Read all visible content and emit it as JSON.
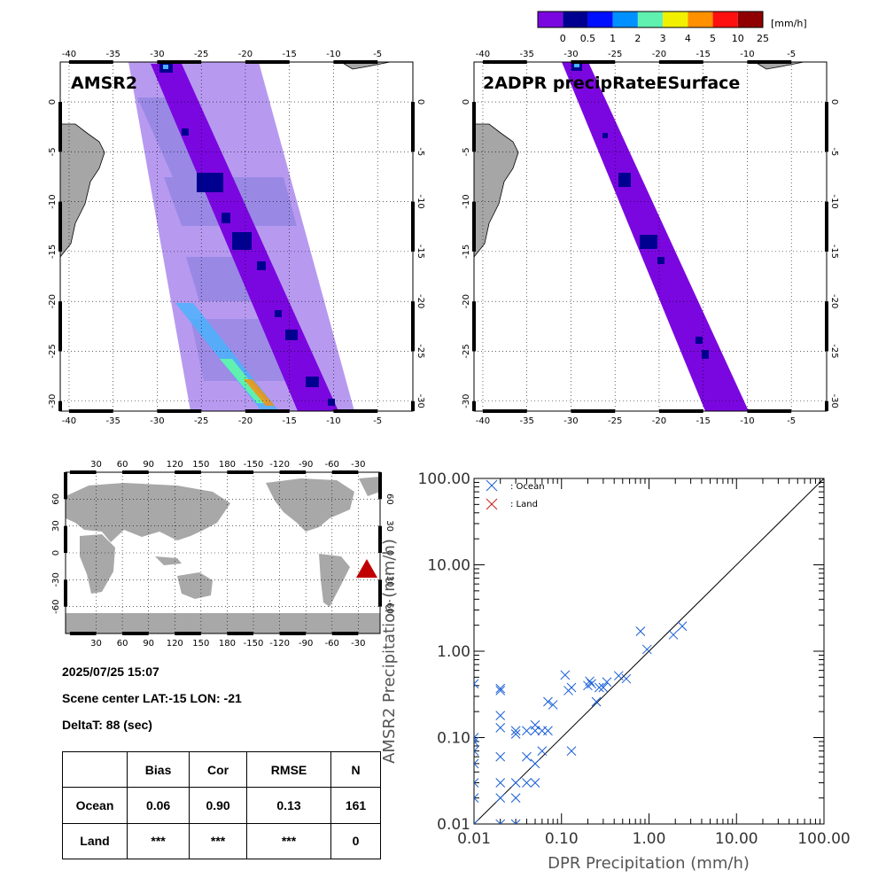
{
  "colorbar": {
    "unit": "[mm/h]",
    "labels": [
      "0",
      "0.5",
      "1",
      "2",
      "3",
      "4",
      "5",
      "10",
      "25"
    ],
    "colors": [
      "#7b07e0",
      "#000090",
      "#0010ff",
      "#0090ff",
      "#60f0b0",
      "#f0f000",
      "#ff9000",
      "#ff1010",
      "#900000"
    ]
  },
  "maps": {
    "lon_ticks": [
      "-40",
      "-35",
      "-30",
      "-25",
      "-20",
      "-15",
      "-10",
      "-5"
    ],
    "lat_ticks": [
      "0",
      "-5",
      "-10",
      "-15",
      "-20",
      "-25",
      "-30"
    ],
    "amsr2": {
      "title": "AMSR2"
    },
    "dpr": {
      "title": "2ADPR precipRateESurface"
    }
  },
  "globe": {
    "lon_ticks": [
      "30",
      "60",
      "90",
      "120",
      "150",
      "180",
      "-150",
      "-120",
      "-90",
      "-60",
      "-30"
    ],
    "lat_ticks": [
      "60",
      "30",
      "0",
      "-30",
      "-60"
    ],
    "marker_color": "#c00000"
  },
  "info": {
    "datetime": "2025/07/25 15:07",
    "scene_center": "Scene center LAT:-15   LON: -21",
    "delta_t": "DeltaT:   88 (sec)"
  },
  "stats": {
    "headers": [
      "",
      "Bias",
      "Cor",
      "RMSE",
      "N"
    ],
    "rows": [
      [
        "Ocean",
        "0.06",
        "0.90",
        "0.13",
        "161"
      ],
      [
        "Land",
        "***",
        "***",
        "***",
        "0"
      ]
    ]
  },
  "chart_data": {
    "type": "scatter",
    "xlabel": "DPR Precipitation (mm/h)",
    "ylabel": "AMSR2 Precipitation (mm/h)",
    "xscale": "log",
    "yscale": "log",
    "xlim": [
      0.01,
      100
    ],
    "ylim": [
      0.01,
      100
    ],
    "x_tick_labels": [
      "0.01",
      "0.10",
      "1.00",
      "10.00",
      "100.00"
    ],
    "y_tick_labels": [
      "0.01",
      "0.10",
      "1.00",
      "10.00",
      "100.00"
    ],
    "legend_position": "top-left",
    "series": [
      {
        "name": ": Ocean",
        "color": "#1a5fd8",
        "x": [
          0.01,
          0.01,
          0.01,
          0.01,
          0.01,
          0.01,
          0.01,
          0.01,
          0.02,
          0.02,
          0.02,
          0.02,
          0.02,
          0.02,
          0.02,
          0.02,
          0.03,
          0.03,
          0.03,
          0.03,
          0.03,
          0.04,
          0.04,
          0.04,
          0.05,
          0.05,
          0.05,
          0.05,
          0.06,
          0.06,
          0.07,
          0.07,
          0.08,
          0.11,
          0.12,
          0.13,
          0.13,
          0.2,
          0.21,
          0.22,
          0.25,
          0.27,
          0.3,
          0.33,
          0.45,
          0.55,
          0.8,
          0.95,
          1.9,
          2.4
        ],
        "y": [
          0.42,
          0.09,
          0.07,
          0.05,
          0.03,
          0.02,
          0.01,
          0.1,
          0.35,
          0.18,
          0.13,
          0.06,
          0.03,
          0.02,
          0.01,
          0.37,
          0.12,
          0.03,
          0.02,
          0.01,
          0.11,
          0.06,
          0.03,
          0.12,
          0.14,
          0.12,
          0.05,
          0.03,
          0.12,
          0.07,
          0.26,
          0.12,
          0.24,
          0.53,
          0.35,
          0.38,
          0.07,
          0.4,
          0.45,
          0.42,
          0.26,
          0.38,
          0.38,
          0.44,
          0.52,
          0.48,
          1.7,
          1.05,
          1.55,
          1.95
        ]
      },
      {
        "name": ": Land",
        "color": "#c81a1a",
        "x": [],
        "y": []
      }
    ]
  }
}
